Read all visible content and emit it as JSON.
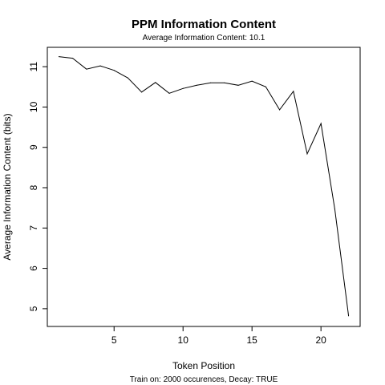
{
  "chart_data": {
    "type": "line",
    "title": "PPM Information Content",
    "subtitle": "Average Information Content: 10.1",
    "xlabel": "Token Position",
    "ylabel": "Average Information Content (bits)",
    "footnote": "Train on: 2000 occurences, Decay: TRUE",
    "xlim": [
      0.16,
      22.84
    ],
    "ylim": [
      4.56,
      11.48
    ],
    "xticks": [
      5,
      10,
      15,
      20
    ],
    "yticks": [
      5,
      6,
      7,
      8,
      9,
      10,
      11
    ],
    "grid": false,
    "legend": "none",
    "line_color": "#000000",
    "x": [
      1,
      2,
      3,
      4,
      5,
      6,
      7,
      8,
      9,
      10,
      11,
      12,
      13,
      14,
      15,
      16,
      17,
      18,
      19,
      20,
      21,
      22
    ],
    "y": [
      11.25,
      11.21,
      10.94,
      11.02,
      10.91,
      10.72,
      10.37,
      10.61,
      10.34,
      10.46,
      10.54,
      10.6,
      10.6,
      10.54,
      10.64,
      10.5,
      9.93,
      10.39,
      8.84,
      9.59,
      7.47,
      4.82
    ]
  }
}
